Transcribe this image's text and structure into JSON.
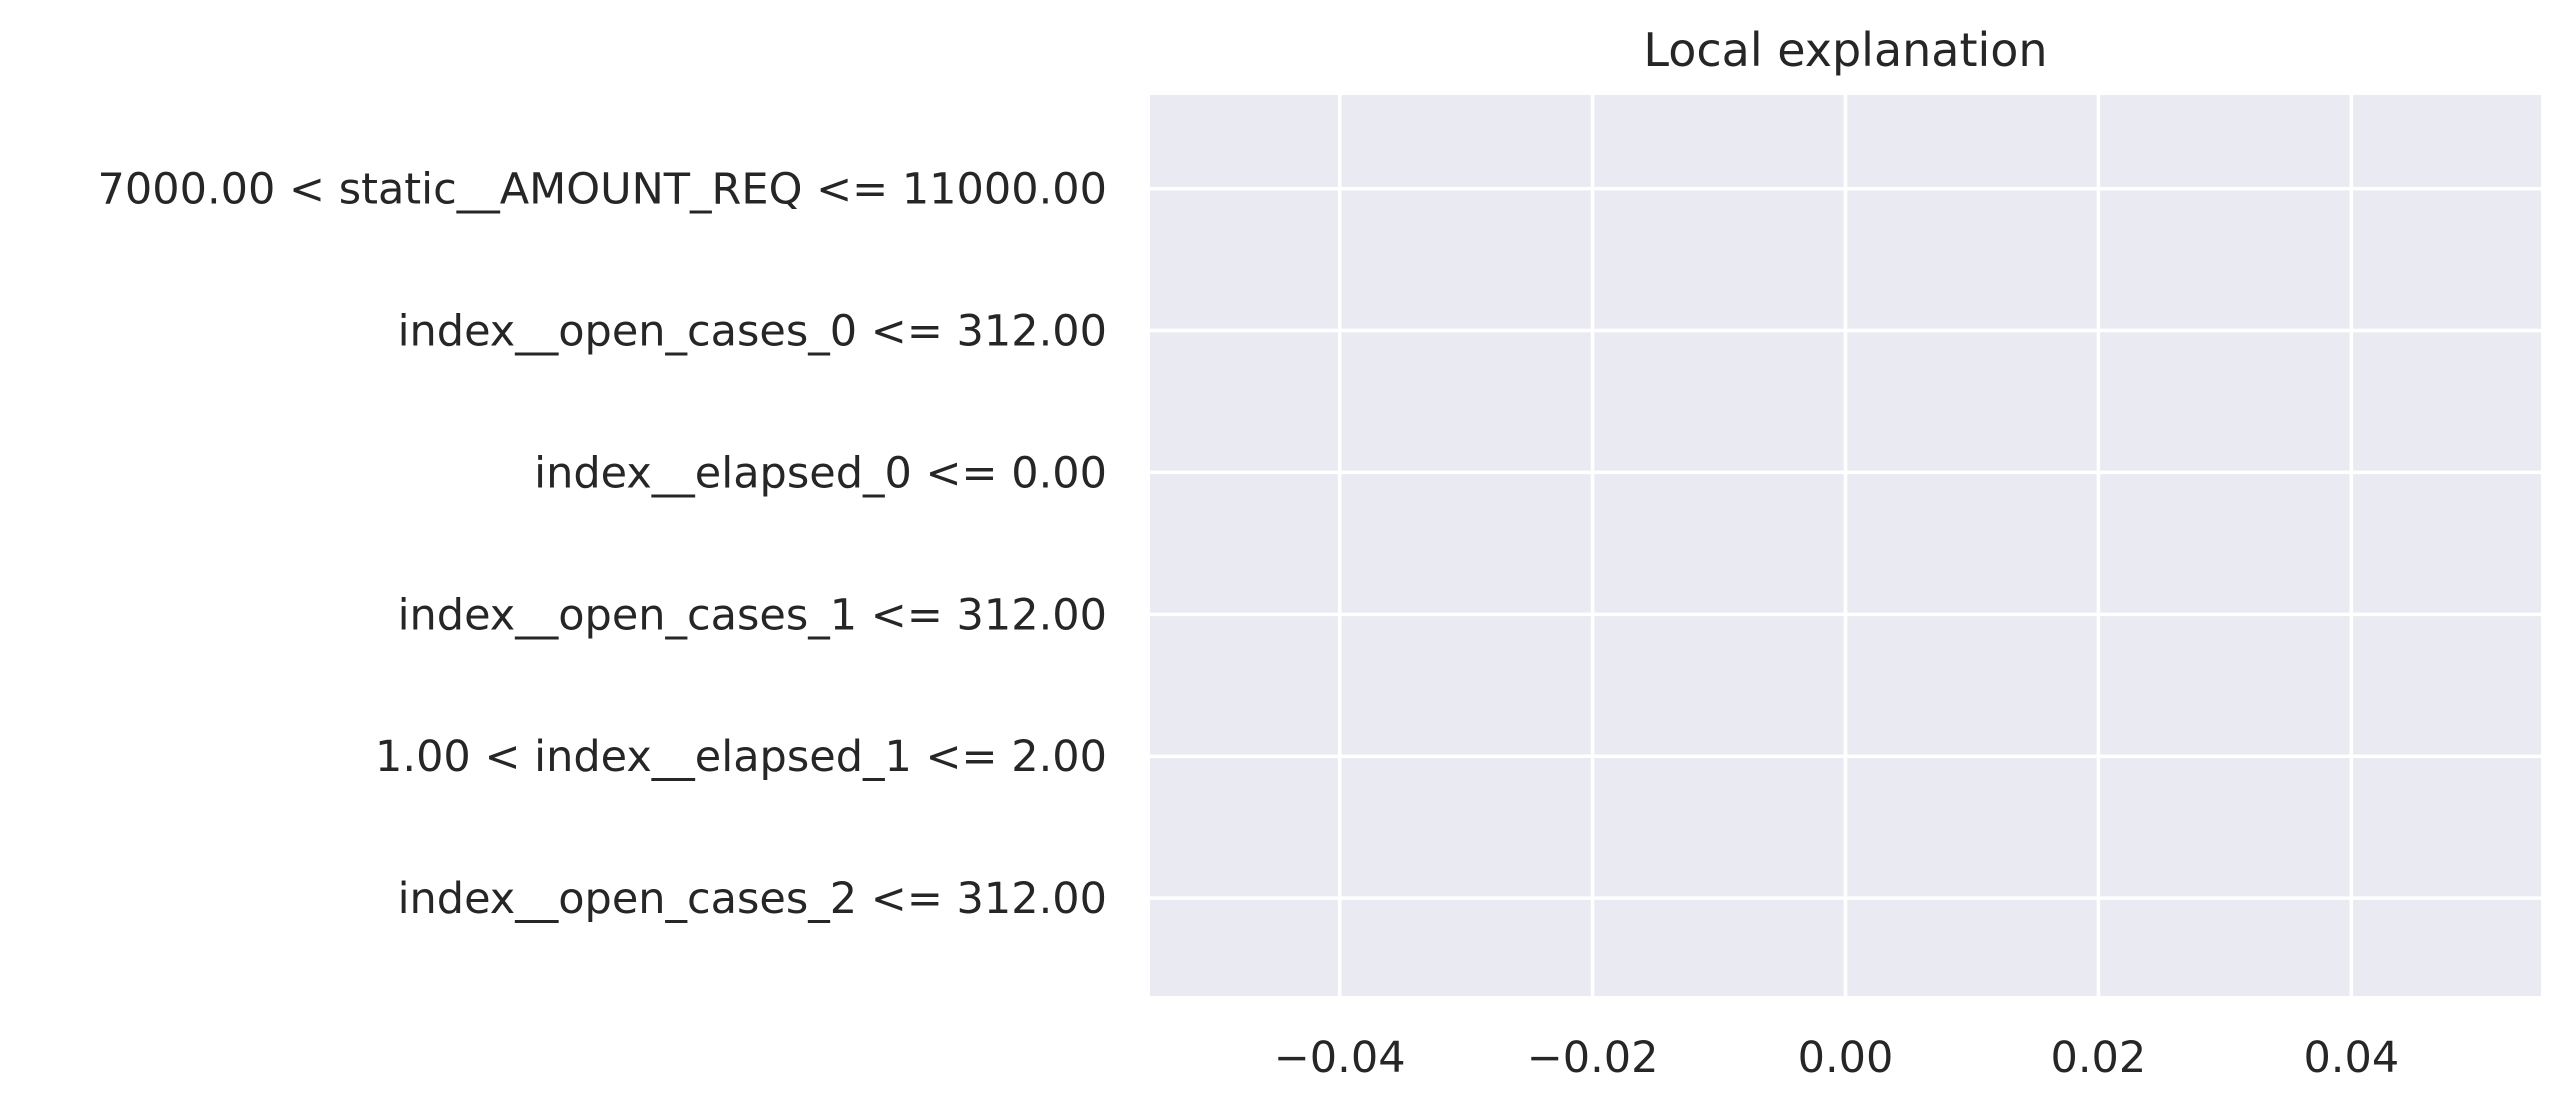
{
  "chart_data": {
    "type": "bar",
    "orientation": "horizontal",
    "title": "Local explanation",
    "xlabel": "",
    "ylabel": "",
    "categories": [
      "7000.00 < static__AMOUNT_REQ <= 11000.00",
      "index__open_cases_0 <= 312.00",
      "index__elapsed_0 <= 0.00",
      "index__open_cases_1 <= 312.00",
      "1.00 < index__elapsed_1 <= 2.00",
      "index__open_cases_2 <= 312.00"
    ],
    "values": [
      0,
      0,
      0,
      0,
      0,
      0
    ],
    "xlim": [
      -0.055,
      0.055
    ],
    "xticks": [
      -0.04,
      -0.02,
      0.0,
      0.02,
      0.04
    ],
    "xtick_labels": [
      "−0.04",
      "−0.02",
      "0.00",
      "0.02",
      "0.04"
    ],
    "grid": true,
    "legend": "none",
    "colors": {
      "plot_background": "#eaeaf2",
      "grid": "#ffffff",
      "text": "#262626"
    }
  }
}
